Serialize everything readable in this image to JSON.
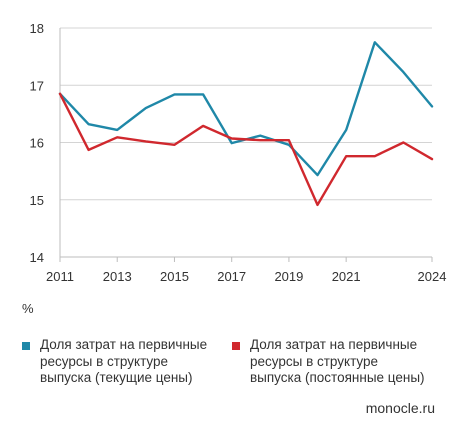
{
  "chart_data": {
    "type": "line",
    "x": [
      2011,
      2012,
      2013,
      2014,
      2015,
      2016,
      2017,
      2018,
      2019,
      2020,
      2021,
      2022,
      2023,
      2024
    ],
    "x_tick_labels": [
      "2011",
      "2013",
      "2015",
      "2017",
      "2019",
      "2021",
      "2024"
    ],
    "y_tick_labels": [
      "14",
      "15",
      "16",
      "17",
      "18"
    ],
    "ylim": [
      14,
      18
    ],
    "grid": "horizontal",
    "unit_label": "%",
    "legend_position": "bottom",
    "series": [
      {
        "name": "Доля затрат на первичные ресурсы в структуре выпуска (текущие цены)",
        "color": "#1f88a8",
        "values": [
          16.85,
          16.32,
          16.22,
          16.6,
          16.84,
          16.84,
          15.99,
          16.12,
          15.96,
          15.43,
          16.22,
          17.75,
          17.23,
          16.63
        ]
      },
      {
        "name": "Доля затрат на первичные ресурсы в структуре выпуска (постоянные цены)",
        "color": "#d0282e",
        "values": [
          16.85,
          15.87,
          16.09,
          16.02,
          15.96,
          16.29,
          16.07,
          16.04,
          16.04,
          14.91,
          15.76,
          15.76,
          16.0,
          15.71
        ]
      }
    ]
  },
  "legend": {
    "items": [
      {
        "lines": [
          "Доля затрат на первичные",
          "ресурсы в структуре",
          "выпуска (текущие цены)"
        ],
        "color": "#1f88a8"
      },
      {
        "lines": [
          "Доля затрат на первичные",
          "ресурсы в структуре",
          "выпуска (постоянные цены)"
        ],
        "color": "#d0282e"
      }
    ]
  },
  "source": "monocle.ru"
}
